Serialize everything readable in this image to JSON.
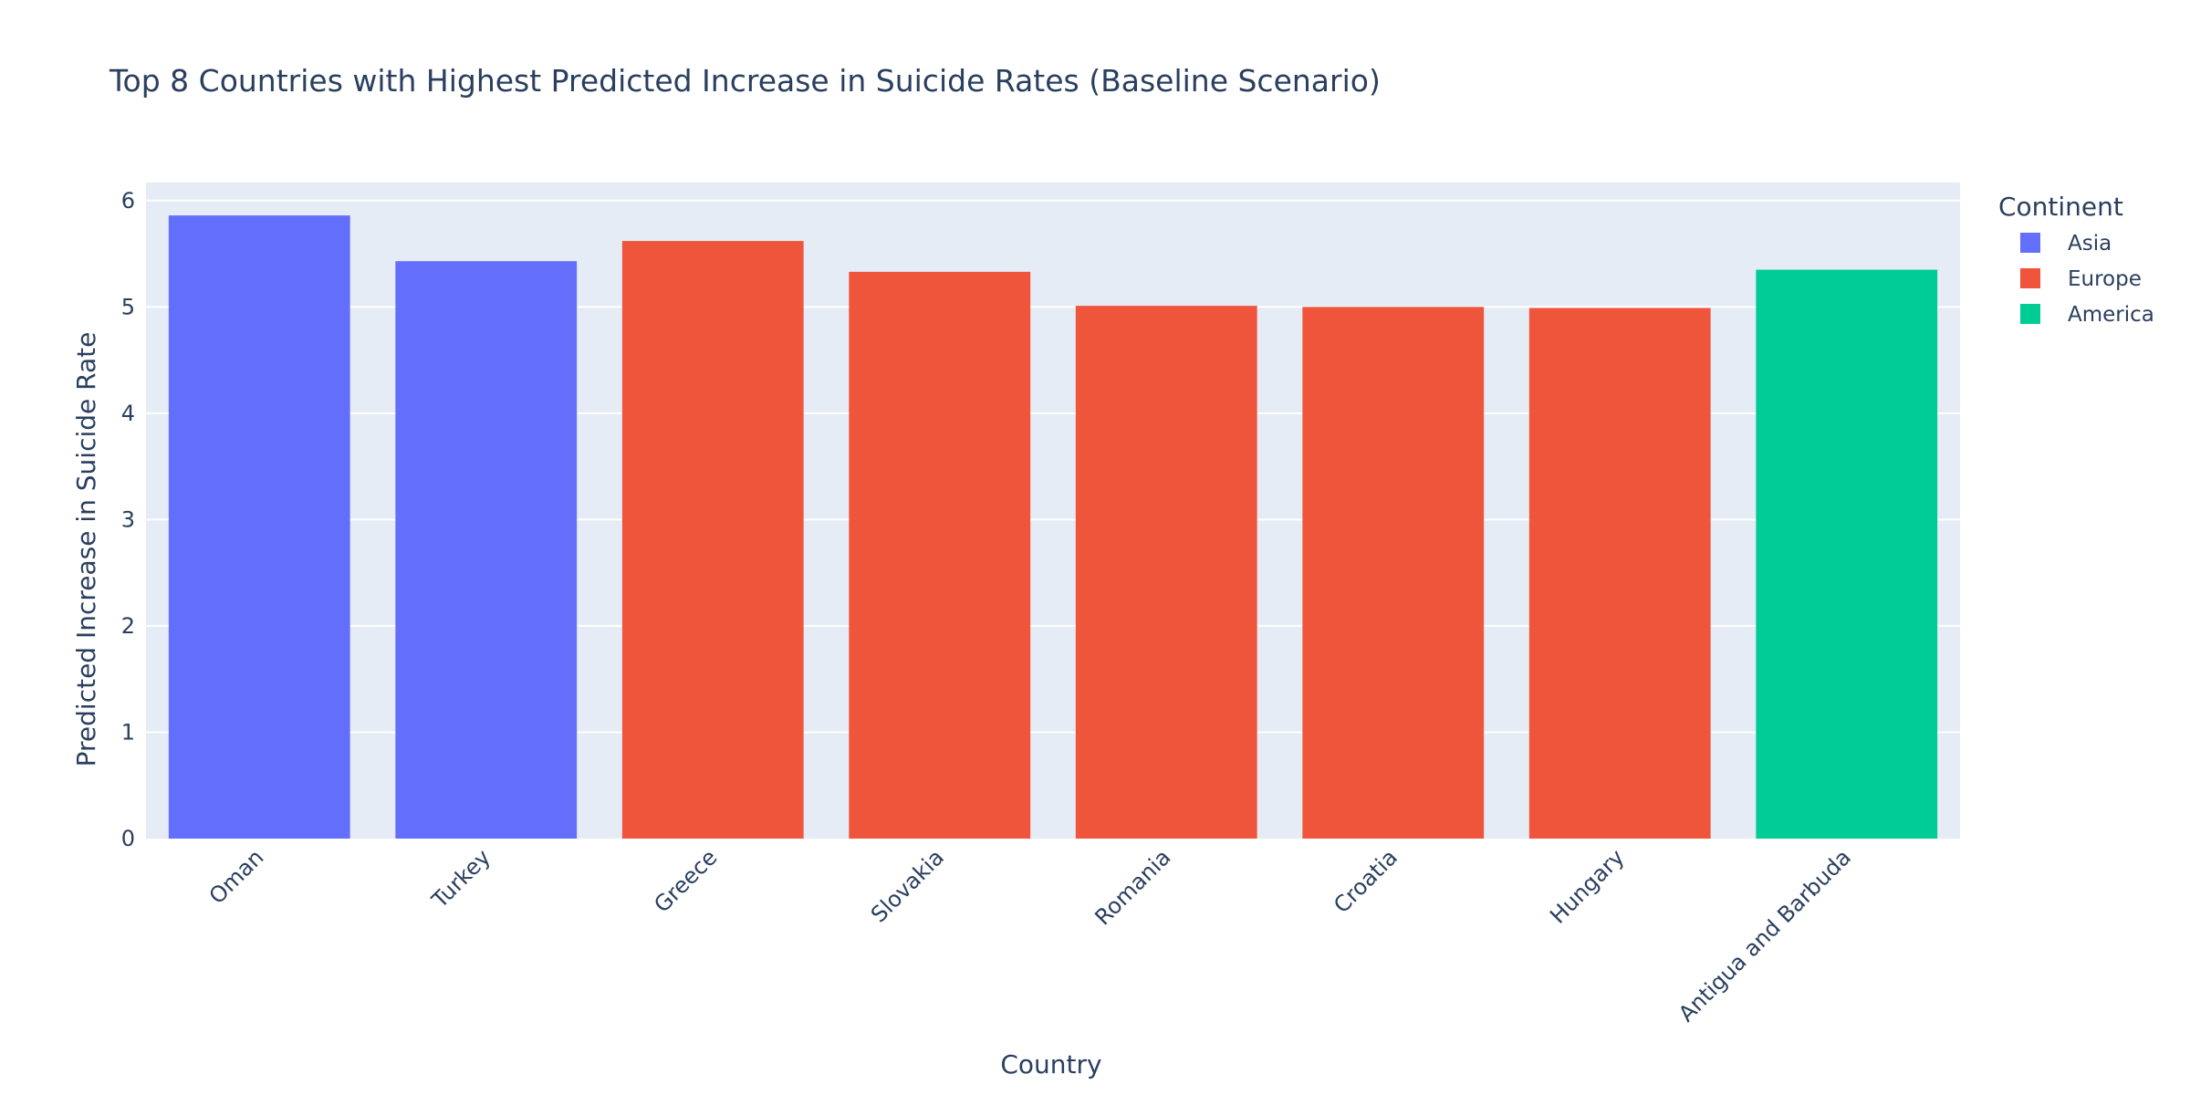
{
  "chart_data": {
    "type": "bar",
    "title": "Top 8 Countries with Highest Predicted Increase in Suicide Rates (Baseline Scenario)",
    "xlabel": "Country",
    "ylabel": "Predicted Increase in Suicide Rate",
    "ylim": [
      0,
      6.17
    ],
    "yticks": [
      "0",
      "1",
      "2",
      "3",
      "4",
      "5",
      "6"
    ],
    "grid": true,
    "legend": {
      "title": "Continent",
      "placement": "top-right",
      "entries": [
        {
          "name": "Asia",
          "color": "#636efa"
        },
        {
          "name": "Europe",
          "color": "#ef553b"
        },
        {
          "name": "America",
          "color": "#00cc96"
        }
      ]
    },
    "categories": [
      "Oman",
      "Turkey",
      "Greece",
      "Slovakia",
      "Romania",
      "Croatia",
      "Hungary",
      "Antigua and Barbuda"
    ],
    "bars": [
      {
        "category": "Oman",
        "value": 5.86,
        "continent": "Asia"
      },
      {
        "category": "Turkey",
        "value": 5.43,
        "continent": "Asia"
      },
      {
        "category": "Greece",
        "value": 5.62,
        "continent": "Europe"
      },
      {
        "category": "Slovakia",
        "value": 5.33,
        "continent": "Europe"
      },
      {
        "category": "Romania",
        "value": 5.01,
        "continent": "Europe"
      },
      {
        "category": "Croatia",
        "value": 5.0,
        "continent": "Europe"
      },
      {
        "category": "Hungary",
        "value": 4.99,
        "continent": "Europe"
      },
      {
        "category": "Antigua and Barbuda",
        "value": 5.35,
        "continent": "America"
      }
    ],
    "colors": {
      "plot_background": "#e5ecf6",
      "gridline": "#ffffff",
      "text": "#2a3f5f"
    }
  }
}
